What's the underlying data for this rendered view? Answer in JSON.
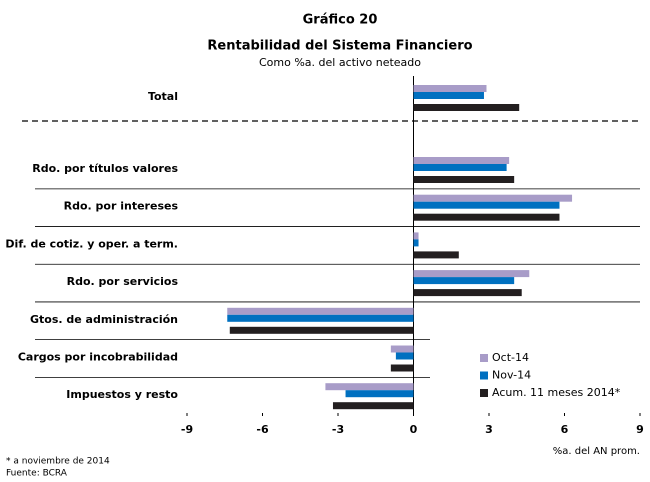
{
  "chart_data": {
    "type": "bar",
    "orientation": "horizontal",
    "title": "Gráfico 20",
    "subtitle": "Rentabilidad del Sistema Financiero",
    "unit_note": "Como %a. del activo neteado",
    "x_label": "%a. del AN prom.",
    "categories": [
      "Total",
      "Rdo. por títulos valores",
      "Rdo. por intereses",
      "Dif. de cotiz. y oper. a term.",
      "Rdo. por servicios",
      "Gtos. de administración",
      "Cargos por incobrabilidad",
      "Impuestos y resto"
    ],
    "series": [
      {
        "name": "Oct-14",
        "color": "#a89cc8",
        "values": [
          2.9,
          3.8,
          6.3,
          0.2,
          4.6,
          -7.4,
          -0.9,
          -3.5
        ]
      },
      {
        "name": "Nov-14",
        "color": "#0070c0",
        "values": [
          2.8,
          3.7,
          5.8,
          0.2,
          4.0,
          -7.4,
          -0.7,
          -2.7
        ]
      },
      {
        "name": "Acum. 11 meses 2014*",
        "color": "#231f20",
        "values": [
          4.2,
          4.0,
          5.8,
          1.8,
          4.3,
          -7.3,
          -0.9,
          -3.2
        ]
      }
    ],
    "xlim": [
      -9,
      9
    ],
    "xticks": [
      -9,
      -6,
      -3,
      0,
      3,
      6,
      9
    ],
    "legend": "lower right",
    "footnotes": [
      "* a noviembre de 2014",
      "Fuente: BCRA"
    ]
  }
}
